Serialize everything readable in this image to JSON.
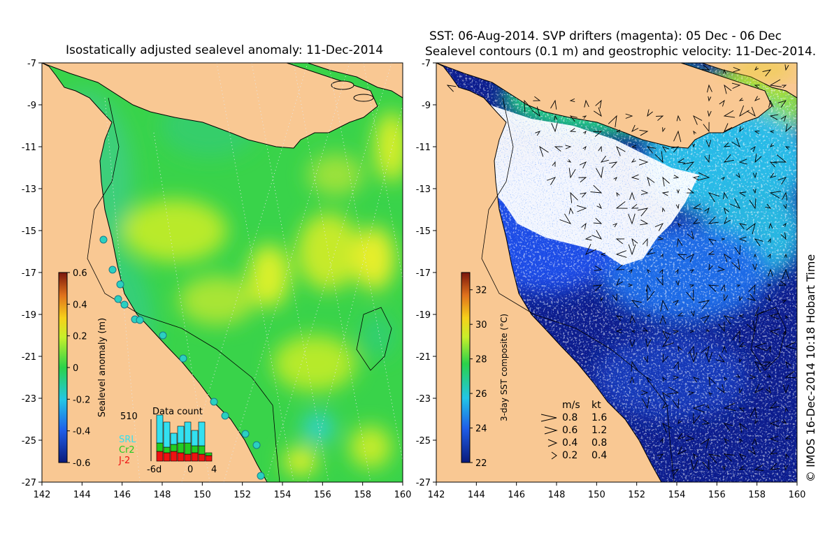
{
  "left_panel": {
    "title": "Isostatically adjusted sealevel anomaly: 11-Dec-2014",
    "x_ticks": [
      "142",
      "144",
      "146",
      "148",
      "150",
      "152",
      "154",
      "156",
      "158",
      "160"
    ],
    "y_ticks": [
      "-7",
      "-9",
      "-11",
      "-13",
      "-15",
      "-17",
      "-19",
      "-21",
      "-23",
      "-25",
      "-27"
    ],
    "colorbar": {
      "label": "Sealevel anomaly (m)",
      "ticks": [
        "0.6",
        "0.4",
        "0.2",
        "0",
        "-0.2",
        "-0.4",
        "-0.6"
      ],
      "range": [
        -0.6,
        0.6
      ]
    },
    "data_count": {
      "title": "Data count",
      "max_label": "510",
      "x_labels": [
        "-6d",
        "0",
        "4"
      ],
      "legend": [
        {
          "label": "SRL",
          "color": "#33e0f0"
        },
        {
          "label": "Cr2",
          "color": "#22cc22"
        },
        {
          "label": "J-2",
          "color": "#ee1111"
        }
      ]
    }
  },
  "right_panel": {
    "title_line1": "SST: 06-Aug-2014. SVP drifters (magenta): 05 Dec - 06 Dec",
    "title_line2": "Sealevel contours (0.1 m) and geostrophic velocity: 11-Dec-2014.",
    "x_ticks": [
      "142",
      "144",
      "146",
      "148",
      "150",
      "152",
      "154",
      "156",
      "158",
      "160"
    ],
    "y_ticks": [
      "-7",
      "-9",
      "-11",
      "-13",
      "-15",
      "-17",
      "-19",
      "-21",
      "-23",
      "-25",
      "-27"
    ],
    "colorbar": {
      "label": "3-day SST composite (°C)",
      "ticks": [
        "32",
        "30",
        "28",
        "26",
        "24",
        "22"
      ],
      "range": [
        22,
        33
      ]
    },
    "velocity_legend": {
      "header_ms": "m/s",
      "header_kt": "kt",
      "rows": [
        {
          "ms": "0.8",
          "kt": "1.6"
        },
        {
          "ms": "0.6",
          "kt": "1.2"
        },
        {
          "ms": "0.4",
          "kt": "0.8"
        },
        {
          "ms": "0.2",
          "kt": "0.4"
        }
      ]
    }
  },
  "credit": "© IMOS 16-Dec-2014 10:18 Hobart Time",
  "colors": {
    "land": "#f9c893",
    "sla_base": "#39d34a",
    "sst_cold": "#0c1b8c",
    "sst_mid": "#1e4be6",
    "cloud": "#ffffff"
  }
}
